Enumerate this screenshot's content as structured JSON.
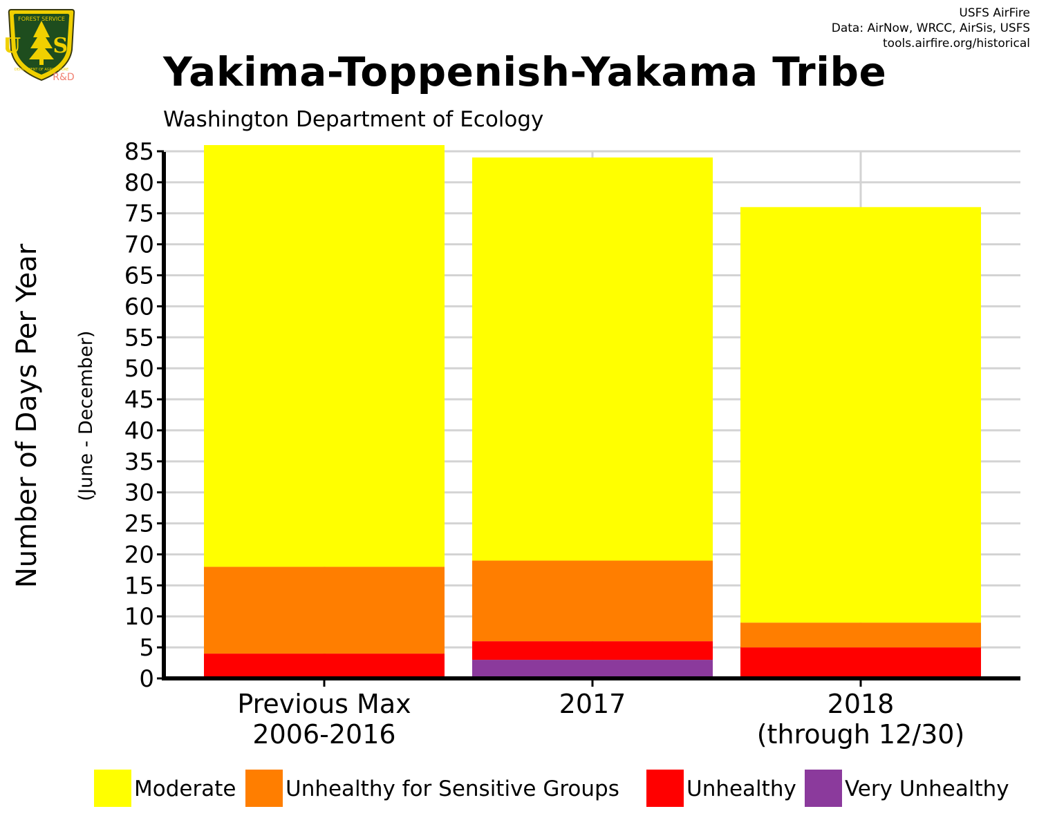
{
  "credits": {
    "line1": "USFS AirFire",
    "line2": "Data: AirNow, WRCC, AirSis, USFS",
    "line3": "tools.airfire.org/historical"
  },
  "logo": {
    "us_text": "U S",
    "rd_text": "R&D",
    "top_text": "FOREST SERVICE",
    "bottom_text": "DEPARTMENT OF AGRICULTURE"
  },
  "title": "Yakima-Toppenish-Yakama Tribe",
  "subtitle": "Washington Department of Ecology",
  "chart_data": {
    "type": "bar",
    "stacked": true,
    "categories": [
      [
        "Previous Max",
        "2006-2016"
      ],
      [
        "2017"
      ],
      [
        "2018",
        "(through 12/30)"
      ]
    ],
    "series": [
      {
        "name": "Very Unhealthy",
        "color": "#8B3A9C",
        "values": [
          0,
          3,
          0
        ]
      },
      {
        "name": "Unhealthy",
        "color": "#FF0000",
        "values": [
          4,
          3,
          5
        ]
      },
      {
        "name": "Unhealthy for Sensitive Groups",
        "color": "#FF7E00",
        "values": [
          14,
          13,
          4
        ]
      },
      {
        "name": "Moderate",
        "color": "#FFFF00",
        "values": [
          68,
          65,
          67
        ]
      }
    ],
    "legend_order": [
      "Moderate",
      "Unhealthy for Sensitive Groups",
      "Unhealthy",
      "Very Unhealthy"
    ],
    "ylabel": "Number of Days Per Year",
    "ylabel_secondary": "(June - December)",
    "ylim": [
      0,
      86
    ],
    "yticks": [
      0,
      5,
      10,
      15,
      20,
      25,
      30,
      35,
      40,
      45,
      50,
      55,
      60,
      65,
      70,
      75,
      80,
      85
    ],
    "grid": true,
    "legend_position": "bottom"
  }
}
